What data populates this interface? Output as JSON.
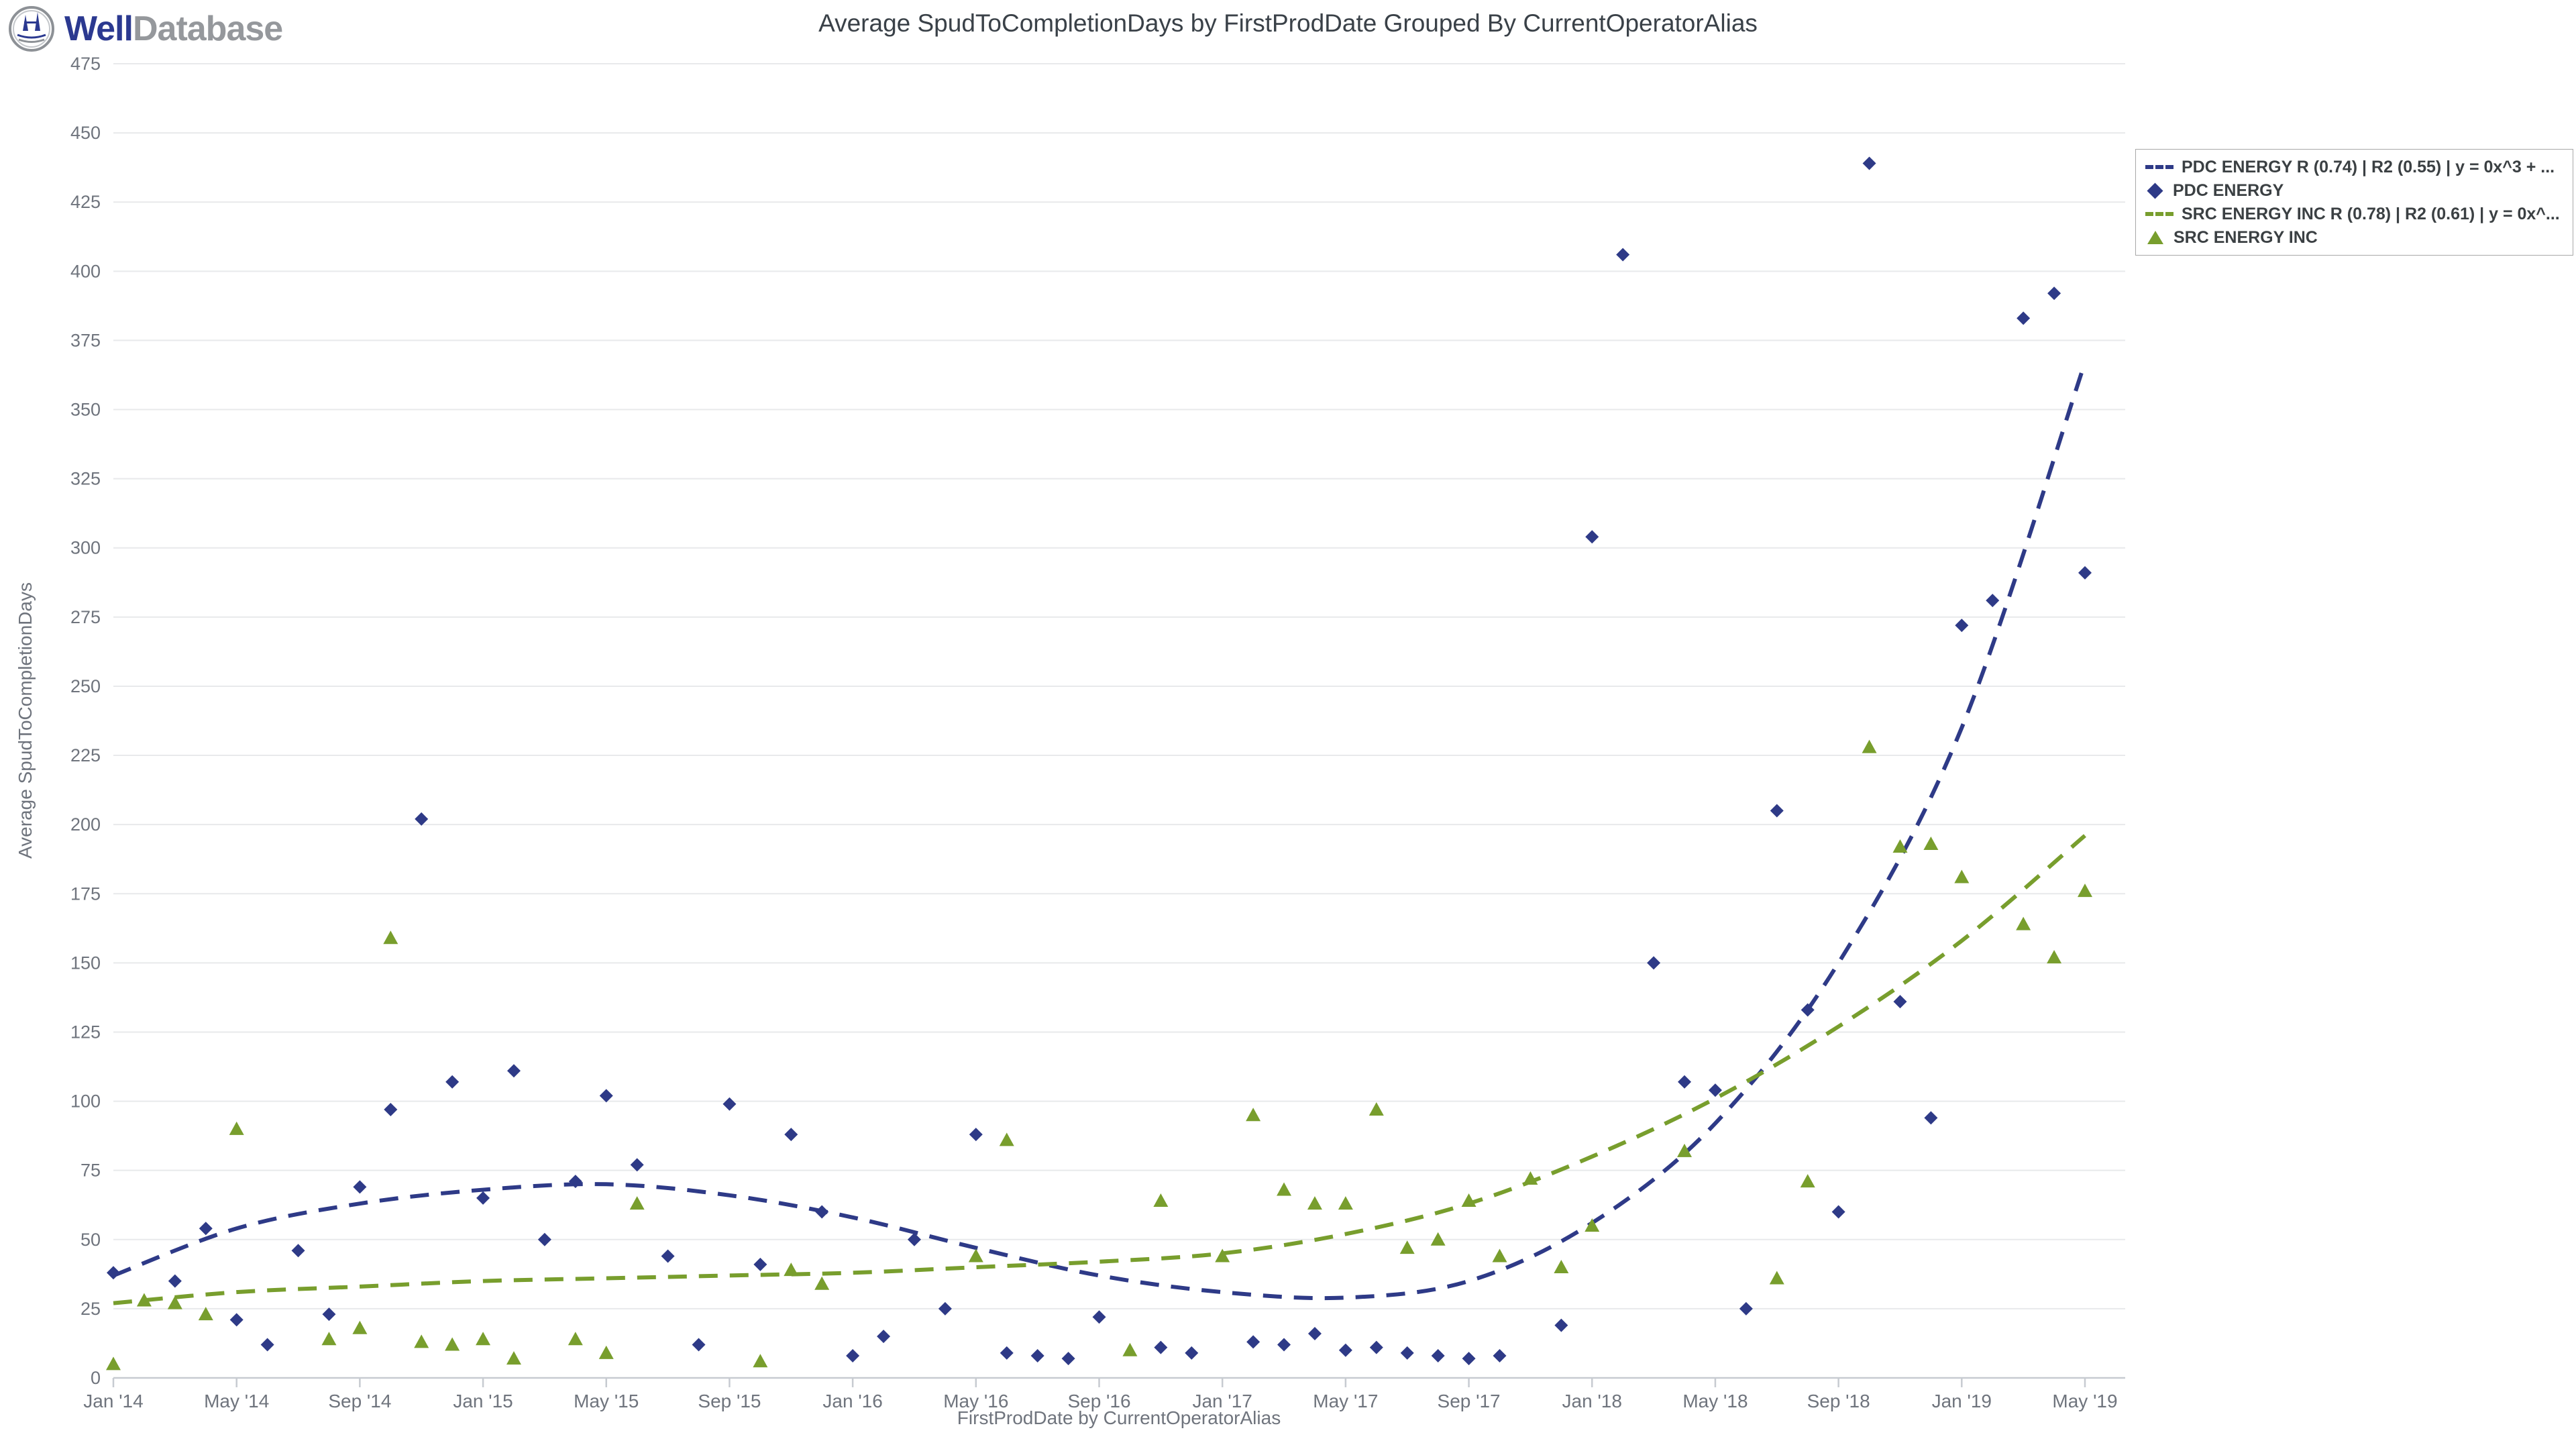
{
  "header": {
    "logo": {
      "brand_first": "Well",
      "brand_second": "Database",
      "icon": "oil-derrick-circle-logo"
    }
  },
  "chart_data": {
    "type": "scatter",
    "title": "Average SpudToCompletionDays by FirstProdDate Grouped By CurrentOperatorAlias",
    "xlabel": "FirstProdDate by CurrentOperatorAlias",
    "ylabel": "Average SpudToCompletionDays",
    "x_ticks": [
      "Jan '14",
      "May '14",
      "Sep '14",
      "Jan '15",
      "May '15",
      "Sep '15",
      "Jan '16",
      "May '16",
      "Sep '16",
      "Jan '17",
      "May '17",
      "Sep '17",
      "Jan '18",
      "May '18",
      "Sep '18",
      "Jan '19",
      "May '19"
    ],
    "y_min": 0,
    "y_max": 475,
    "y_step": 25,
    "grid": "horizontal-only",
    "legend_position": "top-right",
    "colors": {
      "pdc": "#2e3a87",
      "src": "#789e2d",
      "grid_line": "#e8e9eb",
      "axis_line": "#c7cbd1",
      "tick_text": "#6f747d",
      "title_text": "#3a4148"
    },
    "legend": [
      {
        "label": "PDC ENERGY R (0.74) | R2 (0.55) | y = 0x^3 + ...",
        "marker": "dashed-line",
        "series": "pdc"
      },
      {
        "label": "PDC ENERGY",
        "marker": "diamond",
        "series": "pdc"
      },
      {
        "label": "SRC ENERGY INC R (0.78) | R2 (0.61) | y = 0x^...",
        "marker": "dashed-line",
        "series": "src"
      },
      {
        "label": "SRC ENERGY INC",
        "marker": "triangle",
        "series": "src"
      }
    ],
    "series": [
      {
        "name": "PDC ENERGY",
        "marker": "diamond",
        "color_key": "pdc",
        "points": [
          [
            "Jan '14",
            38
          ],
          [
            "Mar '14",
            35
          ],
          [
            "Apr '14",
            54
          ],
          [
            "May '14",
            21
          ],
          [
            "Jun '14",
            12
          ],
          [
            "Jul '14",
            46
          ],
          [
            "Aug '14",
            23
          ],
          [
            "Sep '14",
            69
          ],
          [
            "Oct '14",
            97
          ],
          [
            "Nov '14",
            202
          ],
          [
            "Dec '14",
            107
          ],
          [
            "Jan '15",
            65
          ],
          [
            "Feb '15",
            111
          ],
          [
            "Mar '15",
            50
          ],
          [
            "Apr '15",
            71
          ],
          [
            "May '15",
            102
          ],
          [
            "Jun '15",
            77
          ],
          [
            "Jul '15",
            44
          ],
          [
            "Aug '15",
            12
          ],
          [
            "Sep '15",
            99
          ],
          [
            "Oct '15",
            41
          ],
          [
            "Nov '15",
            88
          ],
          [
            "Dec '15",
            60
          ],
          [
            "Jan '16",
            8
          ],
          [
            "Feb '16",
            15
          ],
          [
            "Mar '16",
            50
          ],
          [
            "Apr '16",
            25
          ],
          [
            "May '16",
            88
          ],
          [
            "Jun '16",
            9
          ],
          [
            "Jul '16",
            8
          ],
          [
            "Aug '16",
            7
          ],
          [
            "Sep '16",
            22
          ],
          [
            "Nov '16",
            11
          ],
          [
            "Dec '16",
            9
          ],
          [
            "Feb '17",
            13
          ],
          [
            "Mar '17",
            12
          ],
          [
            "Apr '17",
            16
          ],
          [
            "May '17",
            10
          ],
          [
            "Jun '17",
            11
          ],
          [
            "Jul '17",
            9
          ],
          [
            "Aug '17",
            8
          ],
          [
            "Sep '17",
            7
          ],
          [
            "Oct '17",
            8
          ],
          [
            "Dec '17",
            19
          ],
          [
            "Jan '18",
            304
          ],
          [
            "Feb '18",
            406
          ],
          [
            "Mar '18",
            150
          ],
          [
            "Apr '18",
            107
          ],
          [
            "May '18",
            104
          ],
          [
            "Jun '18",
            25
          ],
          [
            "Jul '18",
            205
          ],
          [
            "Aug '18",
            133
          ],
          [
            "Sep '18",
            60
          ],
          [
            "Oct '18",
            439
          ],
          [
            "Nov '18",
            136
          ],
          [
            "Dec '18",
            94
          ],
          [
            "Jan '19",
            272
          ],
          [
            "Feb '19",
            281
          ],
          [
            "Mar '19",
            383
          ],
          [
            "Apr '19",
            392
          ],
          [
            "May '19",
            291
          ]
        ]
      },
      {
        "name": "SRC ENERGY INC",
        "marker": "triangle",
        "color_key": "src",
        "points": [
          [
            "Jan '14",
            5
          ],
          [
            "Feb '14",
            28
          ],
          [
            "Mar '14",
            27
          ],
          [
            "Apr '14",
            23
          ],
          [
            "May '14",
            90
          ],
          [
            "Aug '14",
            14
          ],
          [
            "Sep '14",
            18
          ],
          [
            "Oct '14",
            159
          ],
          [
            "Nov '14",
            13
          ],
          [
            "Dec '14",
            12
          ],
          [
            "Jan '15",
            14
          ],
          [
            "Feb '15",
            7
          ],
          [
            "Apr '15",
            14
          ],
          [
            "May '15",
            9
          ],
          [
            "Jun '15",
            63
          ],
          [
            "Oct '15",
            6
          ],
          [
            "Nov '15",
            39
          ],
          [
            "Dec '15",
            34
          ],
          [
            "May '16",
            44
          ],
          [
            "Jun '16",
            86
          ],
          [
            "Oct '16",
            10
          ],
          [
            "Nov '16",
            64
          ],
          [
            "Jan '17",
            44
          ],
          [
            "Feb '17",
            95
          ],
          [
            "Mar '17",
            68
          ],
          [
            "Apr '17",
            63
          ],
          [
            "May '17",
            63
          ],
          [
            "Jun '17",
            97
          ],
          [
            "Jul '17",
            47
          ],
          [
            "Aug '17",
            50
          ],
          [
            "Sep '17",
            64
          ],
          [
            "Oct '17",
            44
          ],
          [
            "Nov '17",
            72
          ],
          [
            "Dec '17",
            40
          ],
          [
            "Jan '18",
            55
          ],
          [
            "Apr '18",
            82
          ],
          [
            "Jul '18",
            36
          ],
          [
            "Aug '18",
            71
          ],
          [
            "Oct '18",
            228
          ],
          [
            "Nov '18",
            192
          ],
          [
            "Dec '18",
            193
          ],
          [
            "Jan '19",
            181
          ],
          [
            "Mar '19",
            164
          ],
          [
            "Apr '19",
            152
          ],
          [
            "May '19",
            176
          ]
        ]
      }
    ],
    "trendlines": [
      {
        "name": "PDC ENERGY R (0.74) | R2 (0.55) | y = 0x^3 + ...",
        "color_key": "pdc",
        "points_months_vs_value": [
          [
            0,
            37
          ],
          [
            4,
            54
          ],
          [
            8,
            63
          ],
          [
            12,
            68
          ],
          [
            16,
            70
          ],
          [
            20,
            66
          ],
          [
            24,
            58
          ],
          [
            28,
            47
          ],
          [
            32,
            37
          ],
          [
            36,
            31
          ],
          [
            40,
            29
          ],
          [
            44,
            35
          ],
          [
            48,
            56
          ],
          [
            52,
            92
          ],
          [
            56,
            150
          ],
          [
            60,
            235
          ],
          [
            64,
            367
          ]
        ]
      },
      {
        "name": "SRC ENERGY INC R (0.78) | R2 (0.61) | y = 0x^...",
        "color_key": "src",
        "points_months_vs_value": [
          [
            0,
            27
          ],
          [
            4,
            31
          ],
          [
            8,
            33
          ],
          [
            12,
            35
          ],
          [
            16,
            36
          ],
          [
            20,
            37
          ],
          [
            24,
            38
          ],
          [
            28,
            40
          ],
          [
            32,
            42
          ],
          [
            36,
            45
          ],
          [
            40,
            52
          ],
          [
            44,
            63
          ],
          [
            48,
            80
          ],
          [
            52,
            101
          ],
          [
            56,
            127
          ],
          [
            60,
            158
          ],
          [
            64,
            196
          ]
        ]
      }
    ]
  }
}
